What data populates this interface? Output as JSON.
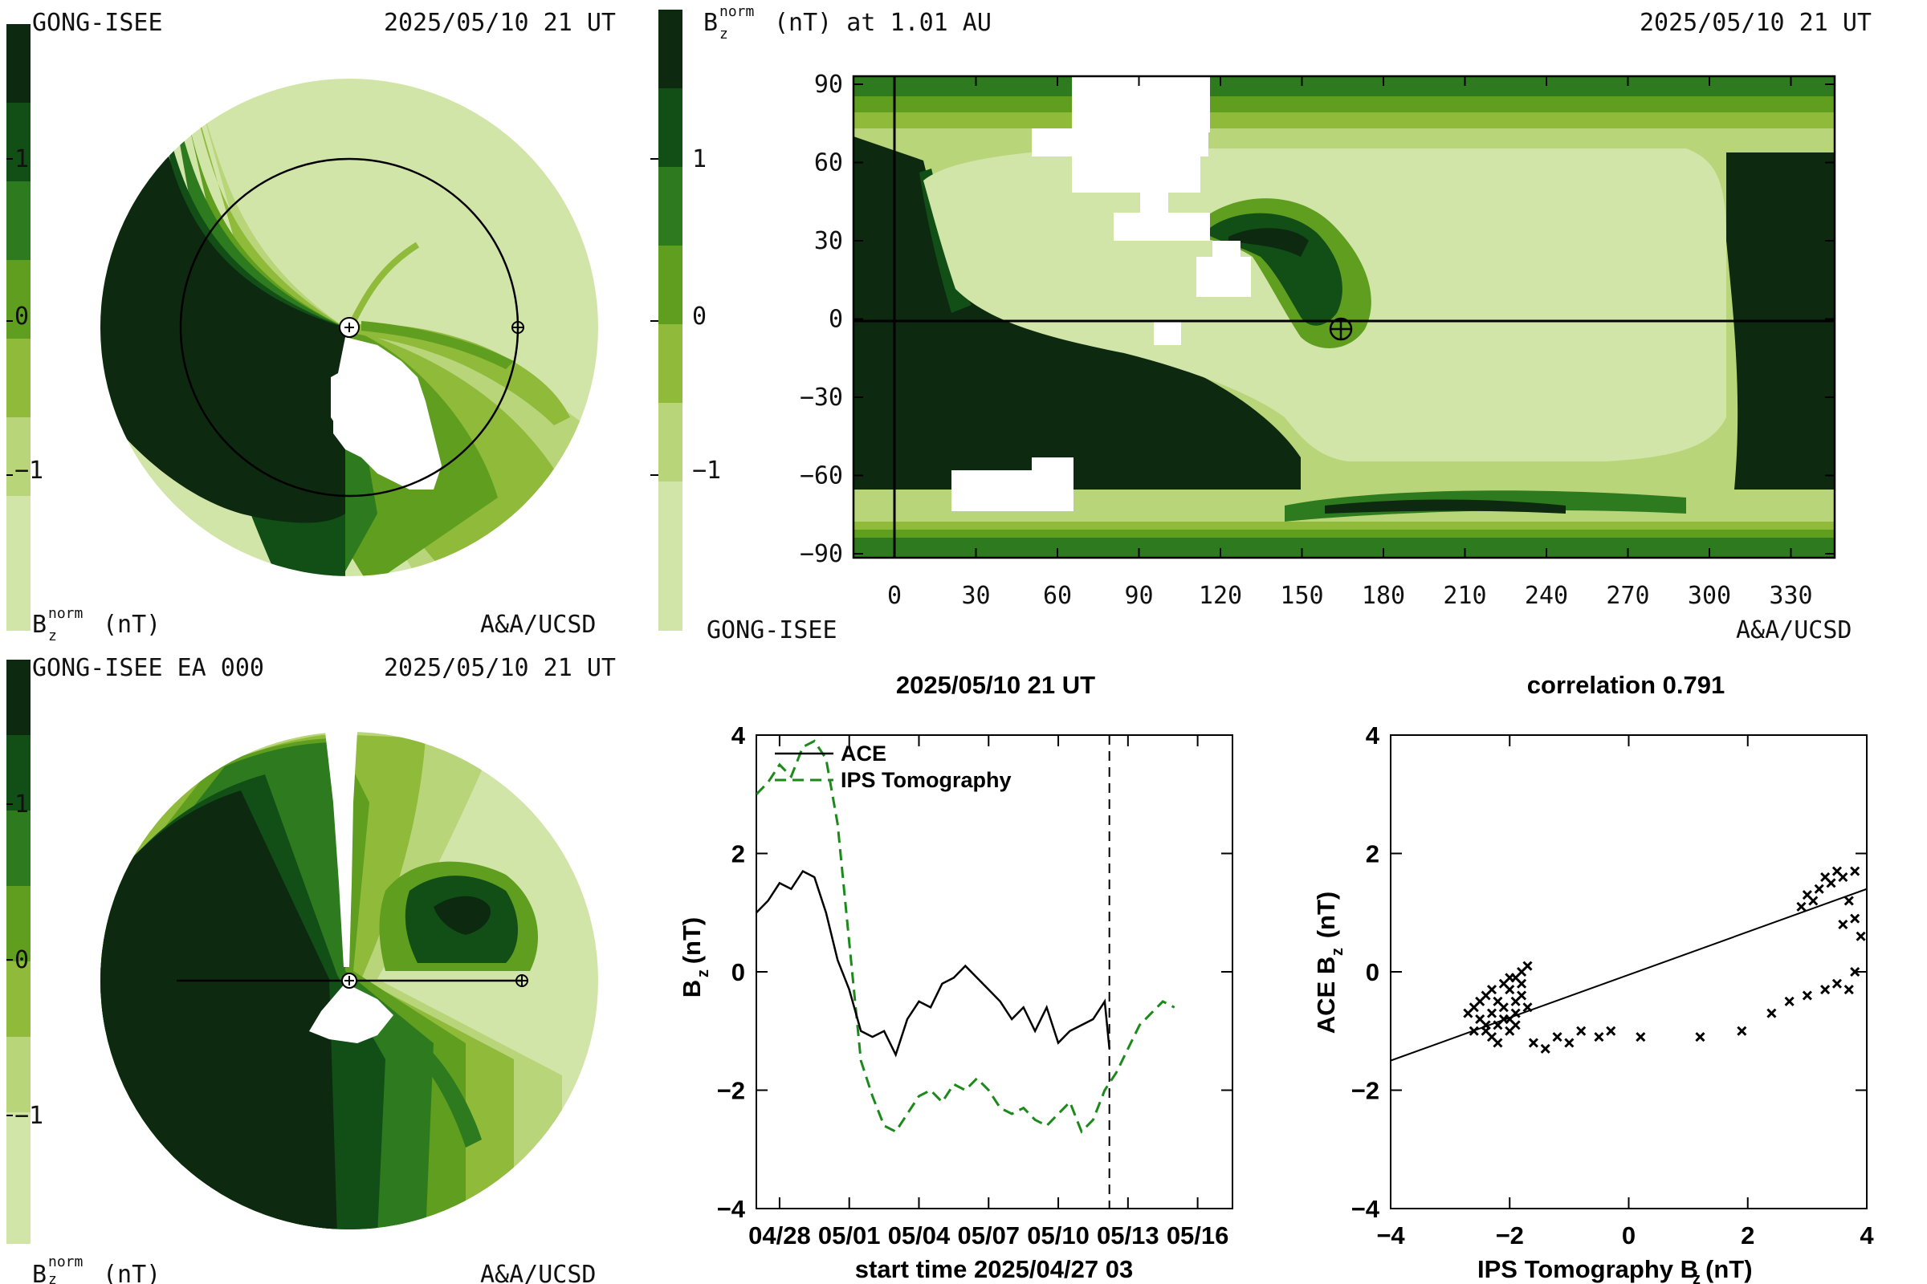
{
  "colors": {
    "c_dark": "#0d2a10",
    "c_deep": "#114f17",
    "c_mid": "#2d7b1e",
    "c_green": "#5f9e1f",
    "c_light": "#8fba3a",
    "c_pale": "#b8d57a",
    "c_palest": "#d2e5a9",
    "ips_line": "#1b8a1b",
    "ace_line": "#000000"
  },
  "colorbar_ticks": [
    "1",
    "0",
    "−1"
  ],
  "panel_tl": {
    "title_left": "GONG-ISEE",
    "title_right": "2025/05/10 21 UT",
    "bottom_right": "A&A/UCSD",
    "bottom_left_main": "B",
    "bottom_left_sub": "z",
    "bottom_left_sup": "norm",
    "bottom_left_unit": "(nT)"
  },
  "panel_tr": {
    "title_main": "B",
    "title_sub": "z",
    "title_sup": "norm",
    "title_rest": "(nT) at 1.01 AU",
    "title_right": "2025/05/10 21 UT",
    "bottom_left": "GONG-ISEE",
    "bottom_right": "A&A/UCSD",
    "xticks": [
      "0",
      "30",
      "60",
      "90",
      "120",
      "150",
      "180",
      "210",
      "240",
      "270",
      "300",
      "330"
    ],
    "yticks": [
      "90",
      "60",
      "30",
      "0",
      "−30",
      "−60",
      "−90"
    ]
  },
  "panel_bl": {
    "title_left": "GONG-ISEE EA 000",
    "title_right": "2025/05/10 21 UT",
    "bottom_right": "A&A/UCSD",
    "bottom_left_main": "B",
    "bottom_left_sub": "z",
    "bottom_left_sup": "norm",
    "bottom_left_unit": "(nT)"
  },
  "chart_data": [
    {
      "type": "line",
      "title": "2025/05/10 21 UT",
      "xlabel": "start time 2025/04/27 03",
      "ylabel_main": "B",
      "ylabel_sub": "z",
      "ylabel_unit": "(nT)",
      "xlim": [
        0,
        20.5
      ],
      "ylim": [
        -4,
        4
      ],
      "xtick_values": [
        1,
        4,
        7,
        10,
        13,
        16,
        19
      ],
      "xticks": [
        "04/28",
        "05/01",
        "05/04",
        "05/07",
        "05/10",
        "05/13",
        "05/16"
      ],
      "yticks": [
        "4",
        "2",
        "0",
        "−2",
        "−4"
      ],
      "ytick_values": [
        4,
        2,
        0,
        -2,
        -4
      ],
      "vline_x": 15.2,
      "legend_position": "top-left",
      "series": [
        {
          "name": "ACE",
          "style": "solid",
          "x": [
            0,
            0.5,
            1,
            1.5,
            2,
            2.5,
            3,
            3.5,
            4,
            4.5,
            5,
            5.5,
            6,
            6.5,
            7,
            7.5,
            8,
            8.5,
            9,
            9.5,
            10,
            10.5,
            11,
            11.5,
            12,
            12.5,
            13,
            13.5,
            14,
            14.5,
            15,
            15.2
          ],
          "y": [
            1.0,
            1.2,
            1.5,
            1.4,
            1.7,
            1.6,
            1.0,
            0.2,
            -0.3,
            -1.0,
            -1.1,
            -1.0,
            -1.4,
            -0.8,
            -0.5,
            -0.6,
            -0.2,
            -0.1,
            0.1,
            -0.1,
            -0.3,
            -0.5,
            -0.8,
            -0.6,
            -1.0,
            -0.6,
            -1.2,
            -1.0,
            -0.9,
            -0.8,
            -0.5,
            -1.3
          ]
        },
        {
          "name": "IPS Tomography",
          "style": "dashed",
          "x": [
            0,
            0.5,
            1,
            1.5,
            2,
            2.5,
            3,
            3.5,
            4,
            4.5,
            5,
            5.5,
            6,
            6.5,
            7,
            7.5,
            8,
            8.5,
            9,
            9.5,
            10,
            10.5,
            11,
            11.5,
            12,
            12.5,
            13,
            13.5,
            14,
            14.5,
            15,
            15.5,
            16,
            16.5,
            17,
            17.5,
            18
          ],
          "y": [
            3.0,
            3.2,
            3.5,
            3.3,
            3.8,
            3.9,
            3.6,
            2.5,
            0.5,
            -1.5,
            -2.1,
            -2.6,
            -2.7,
            -2.4,
            -2.1,
            -2.0,
            -2.2,
            -1.9,
            -2.0,
            -1.8,
            -2.0,
            -2.3,
            -2.4,
            -2.3,
            -2.5,
            -2.6,
            -2.4,
            -2.2,
            -2.7,
            -2.5,
            -2.0,
            -1.7,
            -1.3,
            -0.9,
            -0.7,
            -0.5,
            -0.6
          ]
        }
      ]
    },
    {
      "type": "scatter",
      "title": "correlation 0.791",
      "xlabel_main": "IPS Tomography B",
      "xlabel_sub": "z",
      "xlabel_unit": "(nT)",
      "ylabel_main": "ACE B",
      "ylabel_sub": "z",
      "ylabel_unit": "(nT)",
      "xlim": [
        -4,
        4
      ],
      "ylim": [
        -4,
        4
      ],
      "xticks": [
        "−4",
        "−2",
        "0",
        "2",
        "4"
      ],
      "xtick_values": [
        -4,
        -2,
        0,
        2,
        4
      ],
      "yticks": [
        "4",
        "2",
        "0",
        "−2",
        "−4"
      ],
      "ytick_values": [
        4,
        2,
        0,
        -2,
        -4
      ],
      "fit_line": {
        "x": [
          -4,
          4
        ],
        "y": [
          -1.5,
          1.4
        ]
      },
      "points": [
        [
          -2.6,
          -0.6
        ],
        [
          -2.5,
          -0.8
        ],
        [
          -2.4,
          -1.0
        ],
        [
          -2.4,
          -0.4
        ],
        [
          -2.3,
          -0.7
        ],
        [
          -2.3,
          -1.1
        ],
        [
          -2.2,
          -0.5
        ],
        [
          -2.2,
          -0.9
        ],
        [
          -2.1,
          -0.2
        ],
        [
          -2.1,
          -0.6
        ],
        [
          -2.0,
          -0.3
        ],
        [
          -2.0,
          -0.8
        ],
        [
          -2.0,
          -1.0
        ],
        [
          -1.9,
          -0.1
        ],
        [
          -1.9,
          -0.5
        ],
        [
          -1.9,
          -0.9
        ],
        [
          -1.8,
          0.0
        ],
        [
          -1.8,
          -0.4
        ],
        [
          -1.7,
          0.1
        ],
        [
          -1.7,
          -0.6
        ],
        [
          -2.7,
          -0.7
        ],
        [
          -2.6,
          -1.0
        ],
        [
          -2.5,
          -0.5
        ],
        [
          -2.4,
          -0.9
        ],
        [
          -2.3,
          -0.3
        ],
        [
          -2.2,
          -1.2
        ],
        [
          -2.1,
          -0.8
        ],
        [
          -2.0,
          -0.1
        ],
        [
          -1.9,
          -0.7
        ],
        [
          -1.8,
          -0.2
        ],
        [
          -1.6,
          -1.2
        ],
        [
          -1.4,
          -1.3
        ],
        [
          -1.2,
          -1.1
        ],
        [
          -1.0,
          -1.2
        ],
        [
          -0.8,
          -1.0
        ],
        [
          -0.5,
          -1.1
        ],
        [
          -0.3,
          -1.0
        ],
        [
          0.2,
          -1.1
        ],
        [
          1.2,
          -1.1
        ],
        [
          1.9,
          -1.0
        ],
        [
          2.4,
          -0.7
        ],
        [
          2.7,
          -0.5
        ],
        [
          3.0,
          -0.4
        ],
        [
          3.3,
          -0.3
        ],
        [
          3.5,
          -0.2
        ],
        [
          3.7,
          -0.3
        ],
        [
          3.8,
          0.0
        ],
        [
          3.9,
          0.6
        ],
        [
          3.8,
          0.9
        ],
        [
          3.7,
          1.2
        ],
        [
          3.6,
          1.6
        ],
        [
          3.5,
          1.7
        ],
        [
          3.4,
          1.5
        ],
        [
          3.3,
          1.6
        ],
        [
          3.2,
          1.4
        ],
        [
          3.1,
          1.2
        ],
        [
          3.0,
          1.3
        ],
        [
          2.9,
          1.1
        ],
        [
          3.6,
          0.8
        ],
        [
          3.8,
          1.7
        ]
      ]
    }
  ]
}
